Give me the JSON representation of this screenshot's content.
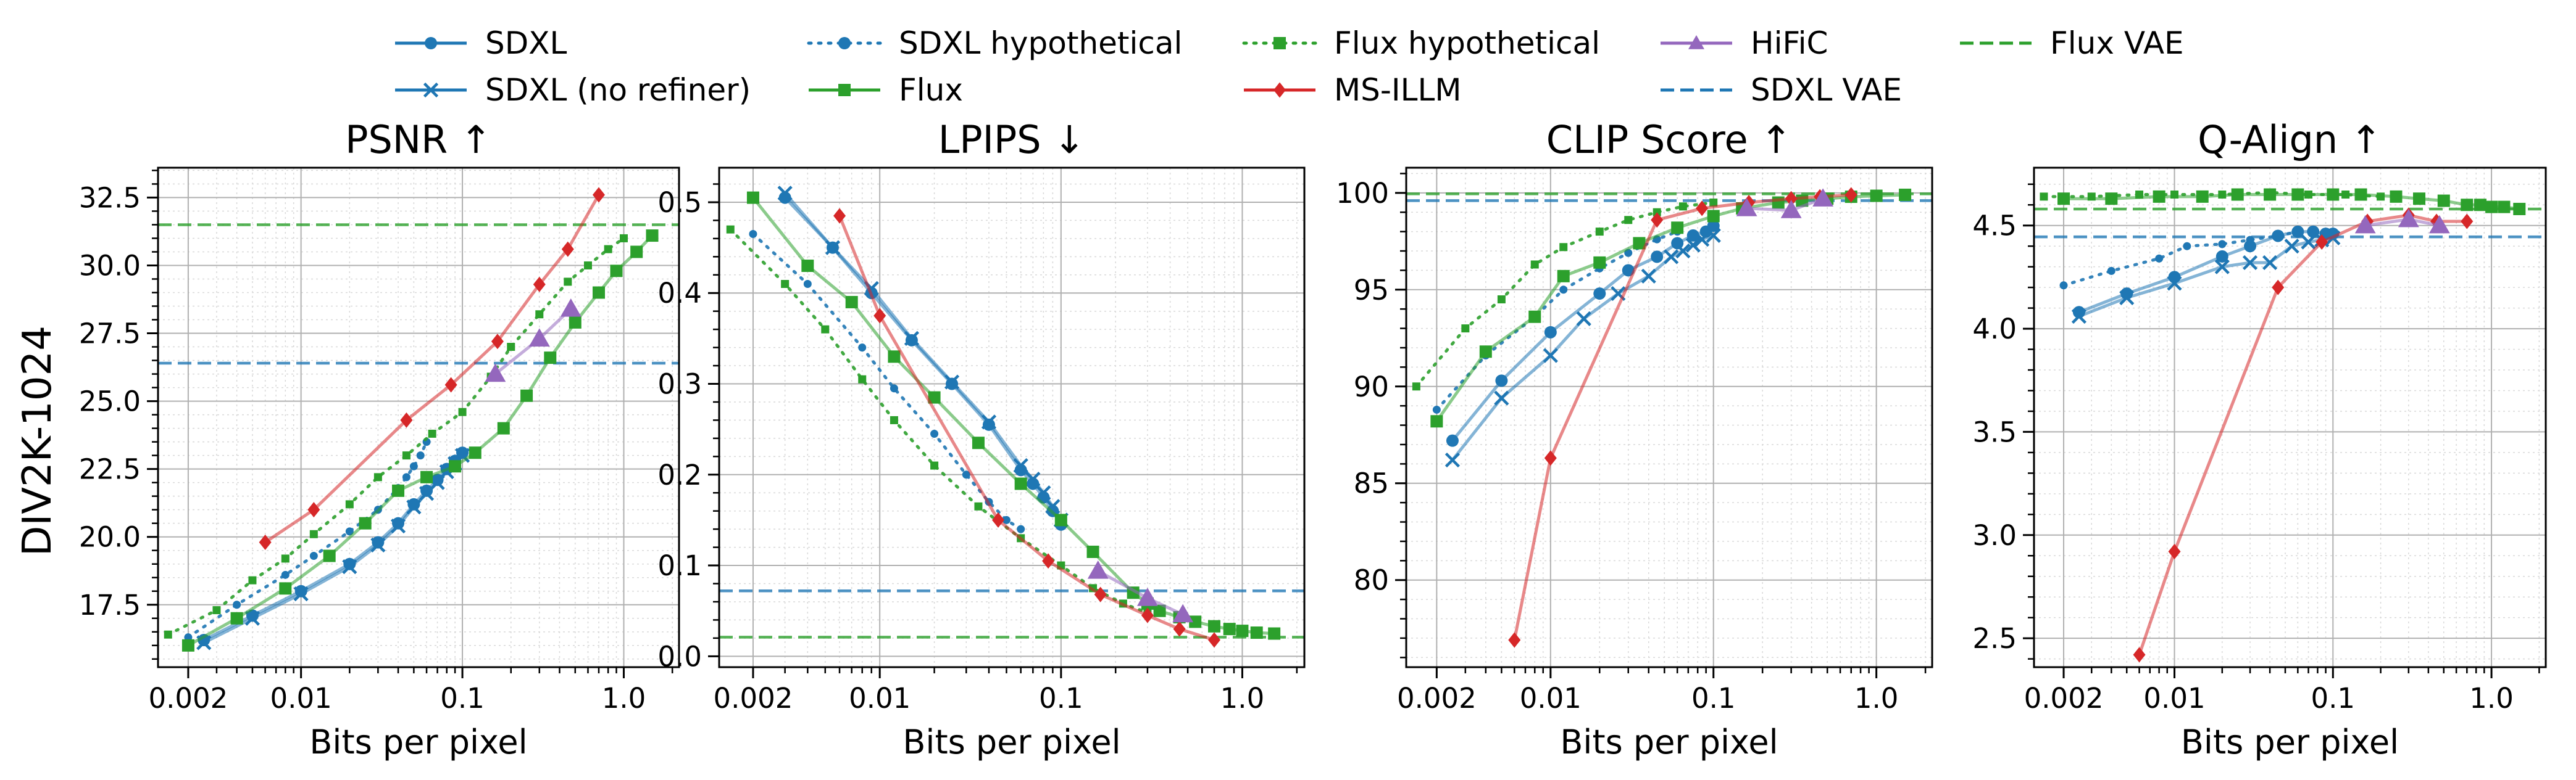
{
  "figure": {
    "row_label": "DIV2K-1024",
    "xlabel": "Bits per pixel"
  },
  "colors": {
    "blue": "#1f77b4",
    "green": "#2ca02c",
    "red": "#d62728",
    "purple": "#9467bd"
  },
  "legend": [
    {
      "label": "SDXL",
      "color": "#1f77b4",
      "style": "solid",
      "marker": "circle"
    },
    {
      "label": "SDXL (no refiner)",
      "color": "#1f77b4",
      "style": "solid",
      "marker": "x"
    },
    {
      "label": "SDXL hypothetical",
      "color": "#1f77b4",
      "style": "dotted",
      "marker": "circle"
    },
    {
      "label": "Flux",
      "color": "#2ca02c",
      "style": "solid",
      "marker": "square"
    },
    {
      "label": "Flux hypothetical",
      "color": "#2ca02c",
      "style": "dotted",
      "marker": "square"
    },
    {
      "label": "MS-ILLM",
      "color": "#d62728",
      "style": "solid",
      "marker": "diamond"
    },
    {
      "label": "HiFiC",
      "color": "#9467bd",
      "style": "solid",
      "marker": "triangle"
    },
    {
      "label": "SDXL VAE",
      "color": "#1f77b4",
      "style": "dashed",
      "marker": "none"
    },
    {
      "label": "Flux VAE",
      "color": "#2ca02c",
      "style": "dashed",
      "marker": "none"
    }
  ],
  "chart_data": [
    {
      "type": "line",
      "title": "PSNR ↑",
      "xlabel": "Bits per pixel",
      "ylabel": "DIV2K-1024",
      "xscale": "log",
      "xlim": [
        0.0013,
        2.2
      ],
      "ylim": [
        15.2,
        33.6
      ],
      "xticks": [
        {
          "v": 0.002,
          "label": "0.002"
        },
        {
          "v": 0.01,
          "label": "0.01"
        },
        {
          "v": 0.1,
          "label": "0.1"
        },
        {
          "v": 1.0,
          "label": "1.0"
        }
      ],
      "yticks": [
        {
          "v": 17.5,
          "label": "17.5"
        },
        {
          "v": 20.0,
          "label": "20.0"
        },
        {
          "v": 22.5,
          "label": "22.5"
        },
        {
          "v": 25.0,
          "label": "25.0"
        },
        {
          "v": 27.5,
          "label": "27.5"
        },
        {
          "v": 30.0,
          "label": "30.0"
        },
        {
          "v": 32.5,
          "label": "32.5"
        }
      ],
      "grid": true,
      "hlines": [
        {
          "name": "SDXL VAE",
          "y": 26.4
        },
        {
          "name": "Flux VAE",
          "y": 31.5
        }
      ],
      "series": [
        {
          "name": "SDXL",
          "x": [
            0.0025,
            0.005,
            0.01,
            0.02,
            0.03,
            0.04,
            0.05,
            0.06,
            0.07,
            0.08,
            0.09,
            0.1
          ],
          "y": [
            16.2,
            17.1,
            18.0,
            19.0,
            19.8,
            20.5,
            21.2,
            21.7,
            22.1,
            22.5,
            22.8,
            23.1
          ]
        },
        {
          "name": "SDXL (no refiner)",
          "x": [
            0.0025,
            0.005,
            0.01,
            0.02,
            0.03,
            0.04,
            0.05,
            0.06,
            0.07,
            0.08,
            0.09,
            0.1
          ],
          "y": [
            16.1,
            17.0,
            17.9,
            18.9,
            19.7,
            20.4,
            21.1,
            21.6,
            22.0,
            22.4,
            22.7,
            23.0
          ]
        },
        {
          "name": "SDXL hypothetical",
          "x": [
            0.002,
            0.004,
            0.008,
            0.012,
            0.02,
            0.03,
            0.04,
            0.045,
            0.05,
            0.055,
            0.06
          ],
          "y": [
            16.3,
            17.5,
            18.6,
            19.3,
            20.2,
            21.0,
            21.8,
            22.2,
            22.6,
            23.0,
            23.5
          ]
        },
        {
          "name": "Flux",
          "x": [
            0.002,
            0.004,
            0.008,
            0.015,
            0.025,
            0.04,
            0.06,
            0.09,
            0.12,
            0.18,
            0.25,
            0.35,
            0.5,
            0.7,
            0.9,
            1.2,
            1.5
          ],
          "y": [
            16.0,
            17.0,
            18.1,
            19.3,
            20.5,
            21.7,
            22.2,
            22.6,
            23.1,
            24.0,
            25.2,
            26.6,
            27.9,
            29.0,
            29.8,
            30.5,
            31.1
          ]
        },
        {
          "name": "Flux hypothetical",
          "x": [
            0.0015,
            0.003,
            0.005,
            0.008,
            0.012,
            0.02,
            0.03,
            0.045,
            0.065,
            0.1,
            0.15,
            0.2,
            0.3,
            0.45,
            0.6,
            0.8,
            1.0
          ],
          "y": [
            16.4,
            17.3,
            18.4,
            19.2,
            20.1,
            21.2,
            22.2,
            23.0,
            23.8,
            24.6,
            25.9,
            27.0,
            28.2,
            29.4,
            30.0,
            30.6,
            31.0
          ]
        },
        {
          "name": "MS-ILLM",
          "x": [
            0.006,
            0.012,
            0.045,
            0.085,
            0.165,
            0.3,
            0.45,
            0.7
          ],
          "y": [
            19.8,
            21.0,
            24.3,
            25.6,
            27.2,
            29.3,
            30.6,
            32.6
          ]
        },
        {
          "name": "HiFiC",
          "x": [
            0.16,
            0.3,
            0.47
          ],
          "y": [
            26.0,
            27.3,
            28.4
          ]
        }
      ]
    },
    {
      "type": "line",
      "title": "LPIPS ↓",
      "xlabel": "Bits per pixel",
      "ylabel": "",
      "xscale": "log",
      "xlim": [
        0.0013,
        2.2
      ],
      "ylim": [
        -0.012,
        0.538
      ],
      "xticks": [
        {
          "v": 0.002,
          "label": "0.002"
        },
        {
          "v": 0.01,
          "label": "0.01"
        },
        {
          "v": 0.1,
          "label": "0.1"
        },
        {
          "v": 1.0,
          "label": "1.0"
        }
      ],
      "yticks": [
        {
          "v": 0.0,
          "label": "0.0"
        },
        {
          "v": 0.1,
          "label": "0.1"
        },
        {
          "v": 0.2,
          "label": "0.2"
        },
        {
          "v": 0.3,
          "label": "0.3"
        },
        {
          "v": 0.4,
          "label": "0.4"
        },
        {
          "v": 0.5,
          "label": "0.5"
        }
      ],
      "grid": true,
      "hlines": [
        {
          "name": "SDXL VAE",
          "y": 0.072
        },
        {
          "name": "Flux VAE",
          "y": 0.021
        }
      ],
      "series": [
        {
          "name": "SDXL",
          "x": [
            0.003,
            0.0055,
            0.009,
            0.015,
            0.025,
            0.04,
            0.06,
            0.07,
            0.08,
            0.09,
            0.1
          ],
          "y": [
            0.505,
            0.45,
            0.4,
            0.348,
            0.3,
            0.255,
            0.205,
            0.19,
            0.175,
            0.16,
            0.145
          ]
        },
        {
          "name": "SDXL (no refiner)",
          "x": [
            0.003,
            0.0055,
            0.009,
            0.015,
            0.025,
            0.04,
            0.06,
            0.07,
            0.08,
            0.09,
            0.1
          ],
          "y": [
            0.51,
            0.45,
            0.405,
            0.35,
            0.302,
            0.258,
            0.21,
            0.195,
            0.18,
            0.165,
            0.15
          ]
        },
        {
          "name": "SDXL hypothetical",
          "x": [
            0.002,
            0.004,
            0.008,
            0.012,
            0.02,
            0.03,
            0.04,
            0.05,
            0.06
          ],
          "y": [
            0.465,
            0.41,
            0.34,
            0.295,
            0.245,
            0.2,
            0.17,
            0.15,
            0.14
          ]
        },
        {
          "name": "Flux",
          "x": [
            0.002,
            0.004,
            0.007,
            0.012,
            0.02,
            0.035,
            0.06,
            0.1,
            0.15,
            0.25,
            0.3,
            0.35,
            0.45,
            0.55,
            0.7,
            0.85,
            1.0,
            1.2,
            1.5
          ],
          "y": [
            0.505,
            0.43,
            0.39,
            0.33,
            0.285,
            0.235,
            0.19,
            0.15,
            0.115,
            0.07,
            0.058,
            0.05,
            0.043,
            0.038,
            0.033,
            0.03,
            0.028,
            0.026,
            0.025
          ]
        },
        {
          "name": "Flux hypothetical",
          "x": [
            0.0015,
            0.003,
            0.005,
            0.008,
            0.012,
            0.02,
            0.035,
            0.06,
            0.1,
            0.15,
            0.22,
            0.3
          ],
          "y": [
            0.47,
            0.41,
            0.36,
            0.305,
            0.26,
            0.21,
            0.165,
            0.13,
            0.1,
            0.075,
            0.058,
            0.048
          ]
        },
        {
          "name": "MS-ILLM",
          "x": [
            0.006,
            0.01,
            0.045,
            0.085,
            0.165,
            0.3,
            0.45,
            0.7
          ],
          "y": [
            0.485,
            0.375,
            0.15,
            0.105,
            0.068,
            0.045,
            0.03,
            0.018
          ]
        },
        {
          "name": "HiFiC",
          "x": [
            0.16,
            0.3,
            0.47
          ],
          "y": [
            0.094,
            0.064,
            0.046
          ]
        }
      ]
    },
    {
      "type": "line",
      "title": "CLIP Score ↑",
      "xlabel": "Bits per pixel",
      "ylabel": "",
      "xscale": "log",
      "xlim": [
        0.0013,
        2.2
      ],
      "ylim": [
        75.5,
        101.3
      ],
      "xticks": [
        {
          "v": 0.002,
          "label": "0.002"
        },
        {
          "v": 0.01,
          "label": "0.01"
        },
        {
          "v": 0.1,
          "label": "0.1"
        },
        {
          "v": 1.0,
          "label": "1.0"
        }
      ],
      "yticks": [
        {
          "v": 80,
          "label": "80"
        },
        {
          "v": 85,
          "label": "85"
        },
        {
          "v": 90,
          "label": "90"
        },
        {
          "v": 95,
          "label": "95"
        },
        {
          "v": 100,
          "label": "100"
        }
      ],
      "grid": true,
      "hlines": [
        {
          "name": "SDXL VAE",
          "y": 99.6
        },
        {
          "name": "Flux VAE",
          "y": 99.95
        }
      ],
      "series": [
        {
          "name": "SDXL",
          "x": [
            0.0025,
            0.005,
            0.01,
            0.02,
            0.03,
            0.045,
            0.06,
            0.075,
            0.09,
            0.1
          ],
          "y": [
            87.2,
            90.3,
            92.8,
            94.8,
            96.0,
            96.7,
            97.4,
            97.8,
            98.0,
            98.3
          ]
        },
        {
          "name": "SDXL (no refiner)",
          "x": [
            0.0025,
            0.005,
            0.01,
            0.016,
            0.026,
            0.04,
            0.055,
            0.065,
            0.075,
            0.085,
            0.1
          ],
          "y": [
            86.2,
            89.4,
            91.6,
            93.5,
            94.8,
            95.7,
            96.7,
            97.0,
            97.3,
            97.6,
            97.8
          ]
        },
        {
          "name": "SDXL hypothetical",
          "x": [
            0.002,
            0.004,
            0.008,
            0.012,
            0.02,
            0.03,
            0.045,
            0.06
          ],
          "y": [
            88.8,
            91.6,
            93.6,
            95.0,
            96.1,
            96.9,
            97.6,
            98.0
          ]
        },
        {
          "name": "Flux",
          "x": [
            0.002,
            0.004,
            0.008,
            0.012,
            0.02,
            0.035,
            0.06,
            0.1,
            0.15,
            0.25,
            0.35,
            0.5,
            0.7,
            1.0,
            1.5
          ],
          "y": [
            88.2,
            91.8,
            93.6,
            95.7,
            96.4,
            97.4,
            98.2,
            98.8,
            99.2,
            99.5,
            99.6,
            99.7,
            99.8,
            99.85,
            99.9
          ]
        },
        {
          "name": "Flux hypothetical",
          "x": [
            0.0015,
            0.003,
            0.005,
            0.008,
            0.012,
            0.02,
            0.03,
            0.045,
            0.065,
            0.1
          ],
          "y": [
            90.0,
            93.0,
            94.5,
            96.3,
            97.2,
            98.0,
            98.6,
            99.0,
            99.3,
            99.5
          ]
        },
        {
          "name": "MS-ILLM",
          "x": [
            0.006,
            0.01,
            0.045,
            0.085,
            0.165,
            0.3,
            0.45,
            0.7
          ],
          "y": [
            76.9,
            86.3,
            98.6,
            99.2,
            99.5,
            99.7,
            99.8,
            99.9
          ]
        },
        {
          "name": "HiFiC",
          "x": [
            0.16,
            0.3,
            0.47
          ],
          "y": [
            99.2,
            99.1,
            99.7
          ]
        }
      ]
    },
    {
      "type": "line",
      "title": "Q-Align ↑",
      "xlabel": "Bits per pixel",
      "ylabel": "",
      "xscale": "log",
      "xlim": [
        0.0013,
        2.2
      ],
      "ylim": [
        2.36,
        4.78
      ],
      "xticks": [
        {
          "v": 0.002,
          "label": "0.002"
        },
        {
          "v": 0.01,
          "label": "0.01"
        },
        {
          "v": 0.1,
          "label": "0.1"
        },
        {
          "v": 1.0,
          "label": "1.0"
        }
      ],
      "yticks": [
        {
          "v": 2.5,
          "label": "2.5"
        },
        {
          "v": 3.0,
          "label": "3.0"
        },
        {
          "v": 3.5,
          "label": "3.5"
        },
        {
          "v": 4.0,
          "label": "4.0"
        },
        {
          "v": 4.5,
          "label": "4.5"
        }
      ],
      "grid": true,
      "hlines": [
        {
          "name": "SDXL VAE",
          "y": 4.445
        },
        {
          "name": "Flux VAE",
          "y": 4.58
        }
      ],
      "series": [
        {
          "name": "SDXL",
          "x": [
            0.0025,
            0.005,
            0.01,
            0.02,
            0.03,
            0.045,
            0.06,
            0.075,
            0.09,
            0.1
          ],
          "y": [
            4.08,
            4.17,
            4.25,
            4.35,
            4.4,
            4.45,
            4.47,
            4.47,
            4.46,
            4.46
          ]
        },
        {
          "name": "SDXL (no refiner)",
          "x": [
            0.0025,
            0.005,
            0.01,
            0.02,
            0.03,
            0.04,
            0.055,
            0.07,
            0.085,
            0.1
          ],
          "y": [
            4.06,
            4.15,
            4.22,
            4.3,
            4.32,
            4.32,
            4.4,
            4.42,
            4.43,
            4.44
          ]
        },
        {
          "name": "SDXL hypothetical",
          "x": [
            0.002,
            0.004,
            0.008,
            0.012,
            0.02,
            0.03,
            0.045,
            0.06
          ],
          "y": [
            4.21,
            4.28,
            4.34,
            4.4,
            4.41,
            4.43,
            4.45,
            4.47
          ]
        },
        {
          "name": "Flux",
          "x": [
            0.002,
            0.004,
            0.008,
            0.015,
            0.025,
            0.04,
            0.06,
            0.1,
            0.15,
            0.25,
            0.35,
            0.5,
            0.7,
            0.85,
            1.0,
            1.2,
            1.5
          ],
          "y": [
            4.63,
            4.63,
            4.64,
            4.64,
            4.65,
            4.65,
            4.65,
            4.65,
            4.65,
            4.64,
            4.63,
            4.62,
            4.6,
            4.6,
            4.59,
            4.59,
            4.58
          ]
        },
        {
          "name": "Flux hypothetical",
          "x": [
            0.0015,
            0.003,
            0.006,
            0.01,
            0.02,
            0.04,
            0.07,
            0.12,
            0.2
          ],
          "y": [
            4.64,
            4.64,
            4.65,
            4.65,
            4.65,
            4.66,
            4.65,
            4.65,
            4.64
          ]
        },
        {
          "name": "MS-ILLM",
          "x": [
            0.006,
            0.01,
            0.045,
            0.085,
            0.165,
            0.3,
            0.45,
            0.7
          ],
          "y": [
            2.42,
            2.92,
            4.2,
            4.42,
            4.52,
            4.55,
            4.52,
            4.52
          ]
        },
        {
          "name": "HiFiC",
          "x": [
            0.16,
            0.3,
            0.47
          ],
          "y": [
            4.5,
            4.53,
            4.5
          ]
        }
      ]
    }
  ]
}
